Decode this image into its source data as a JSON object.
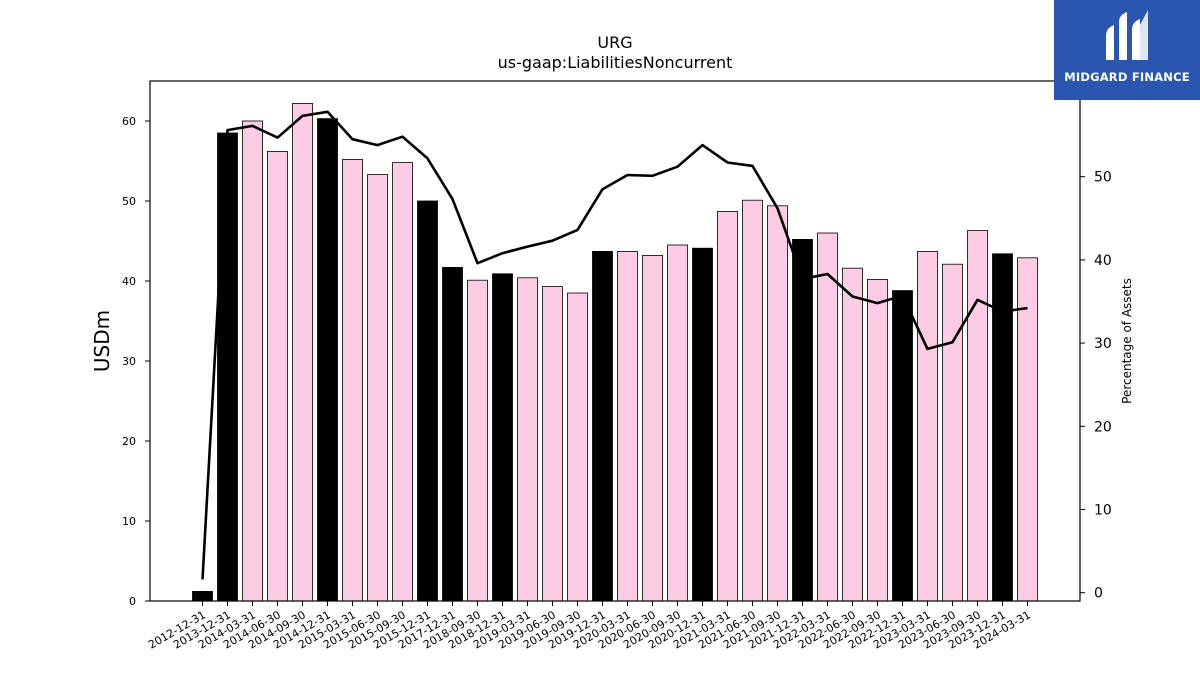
{
  "chart_data": {
    "type": "bar",
    "title": "URG",
    "subtitle": "us-gaap:LiabilitiesNoncurrent",
    "ylabel": "USDm",
    "y2label": "Percentage of Assets",
    "ylim": [
      0,
      65
    ],
    "y2lim": [
      -1,
      61.5
    ],
    "yticks": [
      0,
      10,
      20,
      30,
      40,
      50,
      60
    ],
    "y2ticks": [
      0,
      10,
      20,
      30,
      40,
      50
    ],
    "categories": [
      "2012-12-31",
      "2013-12-31",
      "2014-03-31",
      "2014-06-30",
      "2014-09-30",
      "2014-12-31",
      "2015-03-31",
      "2015-06-30",
      "2015-09-30",
      "2015-12-31",
      "2017-12-31",
      "2018-09-30",
      "2018-12-31",
      "2019-03-31",
      "2019-06-30",
      "2019-09-30",
      "2019-12-31",
      "2020-03-31",
      "2020-06-30",
      "2020-09-30",
      "2020-12-31",
      "2021-03-31",
      "2021-06-30",
      "2021-09-30",
      "2021-12-31",
      "2022-03-31",
      "2022-06-30",
      "2022-09-30",
      "2022-12-31",
      "2023-03-31",
      "2023-06-30",
      "2023-09-30",
      "2023-12-31",
      "2024-03-31"
    ],
    "series": [
      {
        "type": "bar",
        "values": [
          1.2,
          58.5,
          60.0,
          56.2,
          62.2,
          60.3,
          55.2,
          53.3,
          54.8,
          50.0,
          41.7,
          40.1,
          40.9,
          40.4,
          39.3,
          38.5,
          43.7,
          43.7,
          43.2,
          44.5,
          44.1,
          48.7,
          50.1,
          49.4,
          45.2,
          46.0,
          41.6,
          40.2,
          38.8,
          43.7,
          42.1,
          46.3,
          43.4,
          42.9
        ],
        "colors": [
          "#000000",
          "#000000",
          "#fbcce4",
          "#fbcce4",
          "#fbcce4",
          "#000000",
          "#fbcce4",
          "#fbcce4",
          "#fbcce4",
          "#000000",
          "#000000",
          "#fbcce4",
          "#000000",
          "#fbcce4",
          "#fbcce4",
          "#fbcce4",
          "#000000",
          "#fbcce4",
          "#fbcce4",
          "#fbcce4",
          "#000000",
          "#fbcce4",
          "#fbcce4",
          "#fbcce4",
          "#000000",
          "#fbcce4",
          "#fbcce4",
          "#fbcce4",
          "#000000",
          "#fbcce4",
          "#fbcce4",
          "#fbcce4",
          "#000000",
          "#fbcce4"
        ]
      },
      {
        "type": "line",
        "axis": "right",
        "color": "#000000",
        "values": [
          1.6,
          55.6,
          56.1,
          54.7,
          57.3,
          57.8,
          54.5,
          53.8,
          54.8,
          52.2,
          47.3,
          39.6,
          40.8,
          41.6,
          42.3,
          43.6,
          48.5,
          50.2,
          50.1,
          51.2,
          53.8,
          51.7,
          51.3,
          46.2,
          37.7,
          38.3,
          35.6,
          34.8,
          35.7,
          29.3,
          30.1,
          35.2,
          33.8,
          34.2
        ]
      }
    ],
    "legend": "none",
    "grid": false
  },
  "logo": {
    "text": "MIDGARD FINANCE",
    "color": "#2b56b0"
  }
}
